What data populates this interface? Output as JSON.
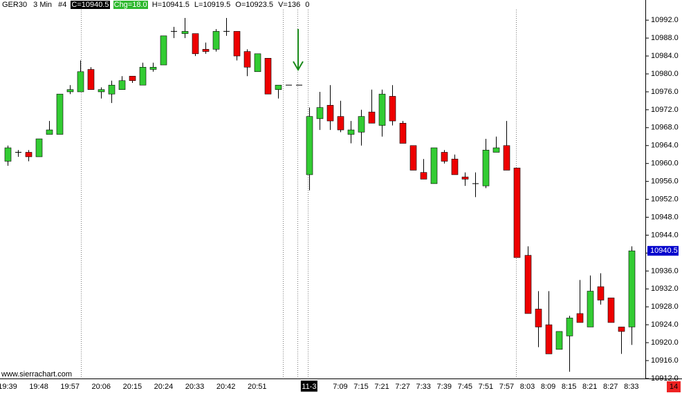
{
  "chart_data": {
    "type": "candlestick",
    "header": [
      "GER30",
      "3 Min",
      "#4",
      "C=10940.5",
      "Chg=18.0",
      "H=10941.5",
      "L=10919.5",
      "O=10923.5",
      "V=136",
      "0"
    ],
    "watermark": "www.sierrachart.com",
    "categories": [
      "19:39",
      null,
      null,
      "19:48",
      null,
      null,
      "19:57",
      null,
      null,
      "20:06",
      null,
      null,
      "20:15",
      null,
      null,
      "20:24",
      null,
      null,
      "20:33",
      null,
      null,
      "20:42",
      null,
      null,
      "20:51",
      null,
      null,
      null,
      null,
      "11-3",
      null,
      null,
      "7:09",
      null,
      "7:15",
      null,
      "7:21",
      null,
      "7:27",
      null,
      "7:33",
      null,
      "7:39",
      null,
      "7:45",
      null,
      "7:51",
      null,
      "7:57",
      null,
      "8:03",
      null,
      "8:09",
      null,
      "8:15",
      null,
      "8:21",
      null,
      "8:27",
      null,
      "8:33"
    ],
    "open": [
      10960.5,
      10962.5,
      10962.5,
      10961.5,
      10966.5,
      10966.5,
      10976,
      10976,
      10981,
      10976,
      10975.5,
      10976.5,
      10979.5,
      10977.5,
      10981,
      10982,
      10989.5,
      10989,
      10989,
      10985.5,
      10985.5,
      10989.5,
      10989.5,
      10985,
      10980.5,
      10983.5,
      10976.5,
      10977.5,
      10977.5,
      10957.5,
      10970,
      10973,
      10970.5,
      10966.5,
      10967,
      10971.5,
      10968.5,
      10975,
      10969,
      10964,
      10958,
      10955.5,
      10962.5,
      10961,
      10957,
      10955.5,
      10955,
      10962.5,
      10964,
      10959,
      10939.5,
      10927.5,
      10924,
      10918.5,
      10921.5,
      10926.5,
      10923.5,
      10932.5,
      10930,
      10923.5,
      10923.5
    ],
    "high": [
      10964,
      10963,
      10963,
      10965.5,
      10969.5,
      10975.5,
      10977.5,
      10983,
      10981.5,
      10977,
      10978.5,
      10979.5,
      10979.5,
      10982.5,
      10982.5,
      10988.5,
      10990.5,
      10992.5,
      10989,
      10987,
      10990,
      10992.5,
      10989.5,
      10985.5,
      10984.5,
      10983.5,
      10977.5,
      10977.5,
      10977.5,
      10972.5,
      10976,
      10977.5,
      10974,
      10969.5,
      10972,
      10976.5,
      10976.5,
      10977.5,
      10969.5,
      10964,
      10961,
      10963.5,
      10963,
      10962,
      10958,
      10958,
      10965.5,
      10966,
      10969.5,
      10959,
      10941.5,
      10931.5,
      10931.5,
      10922.5,
      10926,
      10934,
      10935,
      10935.5,
      10930,
      10923.5,
      10941.5
    ],
    "low": [
      10959.5,
      10961.5,
      10960.5,
      10961.5,
      10966.5,
      10966.5,
      10975.5,
      10976,
      10976.5,
      10974.5,
      10973.5,
      10976.5,
      10978,
      10977.5,
      10980.5,
      10982,
      10988,
      10988,
      10984,
      10984.5,
      10985,
      10988.5,
      10983,
      10979.5,
      10980.5,
      10975.5,
      10974.5,
      10977.5,
      10977.5,
      10954,
      10967.5,
      10967.5,
      10967,
      10964.5,
      10964,
      10969,
      10966,
      10968.5,
      10964.5,
      10958.5,
      10956.5,
      10955.5,
      10960,
      10957.5,
      10955,
      10952.5,
      10954.5,
      10962.5,
      10958.5,
      10939,
      10926.5,
      10919,
      10917.5,
      10918.5,
      10913.5,
      10924.5,
      10923.5,
      10928.5,
      10924.5,
      10917.5,
      10919.5
    ],
    "close": [
      10963.5,
      10962.5,
      10961.5,
      10965.5,
      10967.5,
      10975.5,
      10976.5,
      10980.5,
      10976.5,
      10976.5,
      10977.5,
      10978.5,
      10978.5,
      10981.5,
      10981.5,
      10988.5,
      10989.5,
      10989.5,
      10984.5,
      10985,
      10989.5,
      10989.5,
      10984,
      10981.5,
      10984.5,
      10975.5,
      10977.5,
      10977.5,
      10977.5,
      10970.5,
      10972.5,
      10969.5,
      10967.5,
      10967.5,
      10970.5,
      10969,
      10975.5,
      10969.5,
      10964.5,
      10958.5,
      10956.5,
      10963.5,
      10960.5,
      10957.5,
      10956.5,
      10955.5,
      10963,
      10963.5,
      10958.5,
      10939,
      10926.5,
      10923.5,
      10917.5,
      10922.5,
      10925.5,
      10924.5,
      10931.5,
      10929.5,
      10924.5,
      10922.5,
      10940.5
    ],
    "up_color": "#33cc33",
    "down_color": "#ee0000",
    "ylim": [
      10912,
      10996.5
    ],
    "yticks": [
      {
        "value": 10912,
        "label": "10912.0"
      },
      {
        "value": 10916,
        "label": "10916.0"
      },
      {
        "value": 10920,
        "label": "10920.0"
      },
      {
        "value": 10924,
        "label": "10924.0"
      },
      {
        "value": 10928,
        "label": "10928.0"
      },
      {
        "value": 10932,
        "label": "10932.0"
      },
      {
        "value": 10936,
        "label": "10936.0"
      },
      {
        "value": 10940,
        "label": "10940.0"
      },
      {
        "value": 10944,
        "label": "10944.0"
      },
      {
        "value": 10948,
        "label": "10948.0"
      },
      {
        "value": 10952,
        "label": "10952.0"
      },
      {
        "value": 10956,
        "label": "10956.0"
      },
      {
        "value": 10960,
        "label": "10960.0"
      },
      {
        "value": 10964,
        "label": "10964.0"
      },
      {
        "value": 10968,
        "label": "10968.0"
      },
      {
        "value": 10972,
        "label": "10972.0"
      },
      {
        "value": 10976,
        "label": "10976.0"
      },
      {
        "value": 10980,
        "label": "10980.0"
      },
      {
        "value": 10984,
        "label": "10984.0"
      },
      {
        "value": 10988,
        "label": "10988.0"
      },
      {
        "value": 10992,
        "label": "10992.0"
      }
    ],
    "last_price": 10940.5,
    "counter": 14
  }
}
